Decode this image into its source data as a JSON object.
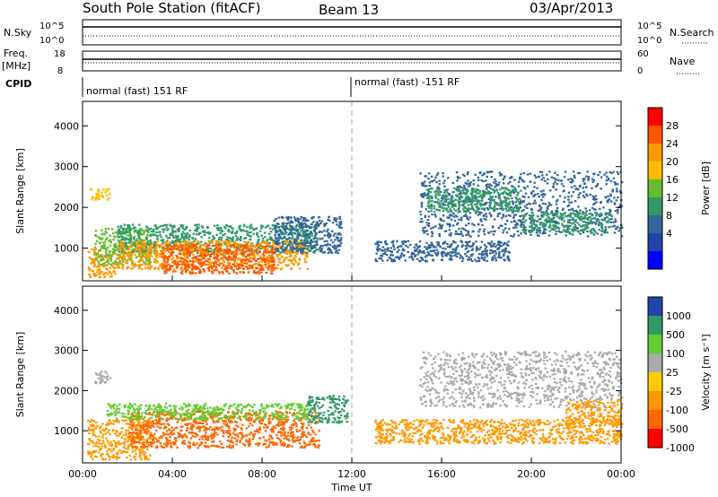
{
  "header": {
    "station": "South Pole Station (fitACF)",
    "beam": "Beam 13",
    "date": "03/Apr/2013"
  },
  "strips": {
    "nsky_label": "N.Sky",
    "nsky_ticks": [
      "10^5",
      "10^0"
    ],
    "nsearch_label": "N.Search",
    "nsearch_ticks": [
      "10^5",
      "10^0"
    ],
    "freq_label_1": "Freq.",
    "freq_label_2": "[MHz]",
    "freq_ticks": [
      "18",
      "8"
    ],
    "nave_label": "Nave",
    "nave_ticks": [
      "60",
      "0"
    ],
    "cpid_label": "CPID",
    "cpid_segments": [
      "normal (fast) 151 RF",
      "normal (fast) -151 RF"
    ]
  },
  "chart_data": [
    {
      "type": "heatmap",
      "name": "power",
      "ylabel": "Slant Range [km]",
      "ylim": [
        200,
        4600
      ],
      "yticks": [
        "1000",
        "2000",
        "3000",
        "4000"
      ],
      "xlabel": "Time UT",
      "xlim_hours": [
        0,
        24
      ],
      "xticks": [
        "00:00",
        "04:00",
        "08:00",
        "12:00",
        "16:00",
        "20:00",
        "00:00"
      ],
      "colorbar_label": "Power [dB]",
      "colorbar_ticks": [
        "28",
        "24",
        "20",
        "16",
        "12",
        "8",
        "4"
      ],
      "colorbar_colors": [
        "#ff0000",
        "#ff5500",
        "#ff9900",
        "#ffbb00",
        "#66bb33",
        "#339966",
        "#336699",
        "#2244aa",
        "#0000ff"
      ],
      "regions": [
        {
          "t0": 0.3,
          "t1": 1.2,
          "r0": 2200,
          "r1": 2500,
          "value": 18
        },
        {
          "t0": 0.2,
          "t1": 1.5,
          "r0": 300,
          "r1": 1000,
          "value": 24
        },
        {
          "t0": 0.5,
          "t1": 3.0,
          "r0": 600,
          "r1": 1500,
          "value": 14
        },
        {
          "t0": 1.5,
          "t1": 10.5,
          "r0": 900,
          "r1": 1600,
          "value": 12
        },
        {
          "t0": 1.5,
          "t1": 10.0,
          "r0": 500,
          "r1": 1200,
          "value": 22
        },
        {
          "t0": 3.5,
          "t1": 8.5,
          "r0": 400,
          "r1": 1100,
          "value": 28
        },
        {
          "t0": 8.5,
          "t1": 11.5,
          "r0": 900,
          "r1": 1800,
          "value": 8
        },
        {
          "t0": 15.0,
          "t1": 24.0,
          "r0": 1300,
          "r1": 2900,
          "value": 6
        },
        {
          "t0": 15.3,
          "t1": 19.5,
          "r0": 1900,
          "r1": 2500,
          "value": 12
        },
        {
          "t0": 19.5,
          "t1": 23.5,
          "r0": 1400,
          "r1": 1900,
          "value": 10
        },
        {
          "t0": 13.0,
          "t1": 19.0,
          "r0": 700,
          "r1": 1200,
          "value": 6
        }
      ]
    },
    {
      "type": "heatmap",
      "name": "velocity",
      "ylabel": "Slant Range [km]",
      "ylim": [
        200,
        4600
      ],
      "yticks": [
        "1000",
        "2000",
        "3000",
        "4000"
      ],
      "xlabel": "Time UT",
      "xlim_hours": [
        0,
        24
      ],
      "xticks": [
        "00:00",
        "04:00",
        "08:00",
        "12:00",
        "16:00",
        "20:00",
        "00:00"
      ],
      "colorbar_label": "Velocity [m s⁻¹]",
      "colorbar_ticks": [
        "1000",
        "500",
        "100",
        "25",
        "-25",
        "-100",
        "-500",
        "-1000"
      ],
      "colorbar_colors": [
        "#2244aa",
        "#339966",
        "#66cc33",
        "#aaaaaa",
        "#ffcc00",
        "#ff9900",
        "#ff6600",
        "#ff0000"
      ],
      "regions": [
        {
          "t0": 0.4,
          "t1": 1.2,
          "r0": 2200,
          "r1": 2500,
          "value": 0
        },
        {
          "t0": 0.2,
          "t1": 3.0,
          "r0": 300,
          "r1": 1300,
          "value": -300
        },
        {
          "t0": 2.0,
          "t1": 10.5,
          "r0": 600,
          "r1": 1500,
          "value": -600
        },
        {
          "t0": 1.0,
          "t1": 10.0,
          "r0": 1300,
          "r1": 1700,
          "value": 200
        },
        {
          "t0": 10.0,
          "t1": 11.8,
          "r0": 1200,
          "r1": 1900,
          "value": 300
        },
        {
          "t0": 15.0,
          "t1": 24.0,
          "r0": 1600,
          "r1": 3000,
          "value": 0
        },
        {
          "t0": 13.0,
          "t1": 24.0,
          "r0": 700,
          "r1": 1300,
          "value": -200
        },
        {
          "t0": 21.5,
          "t1": 24.0,
          "r0": 1100,
          "r1": 1800,
          "value": -300
        }
      ]
    }
  ]
}
